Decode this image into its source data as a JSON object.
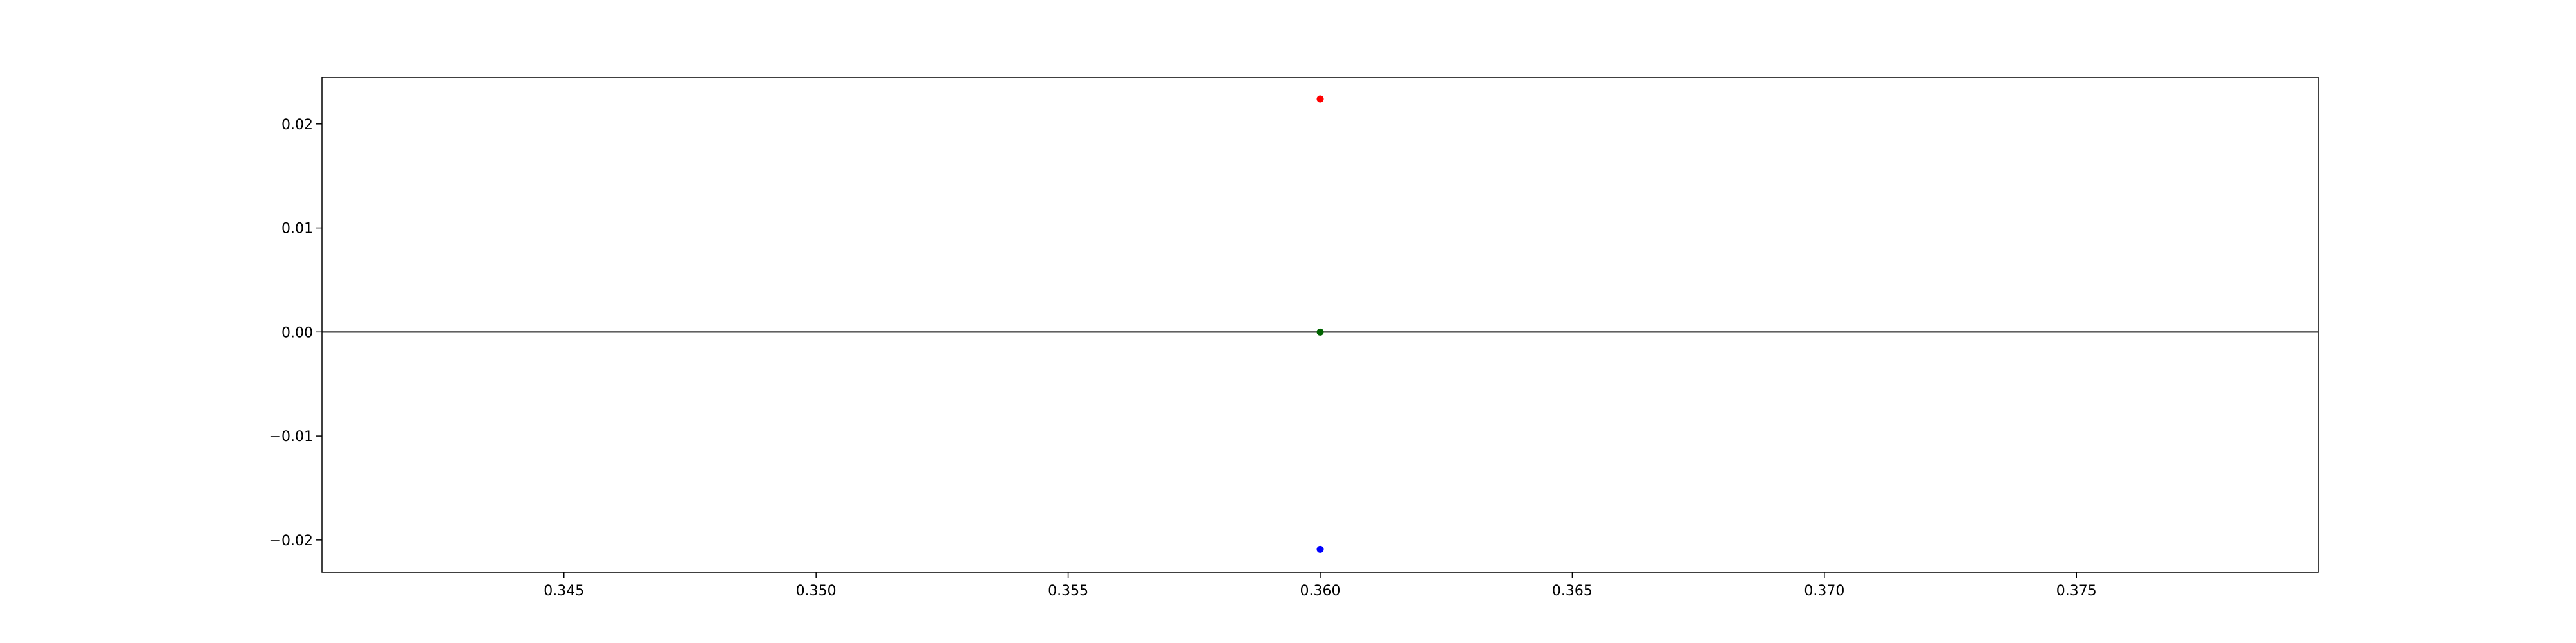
{
  "chart_data": {
    "type": "scatter",
    "title": "",
    "xlabel": "",
    "ylabel": "",
    "xlim": [
      0.3402,
      0.3798
    ],
    "ylim": [
      -0.0231,
      0.0245
    ],
    "grid": false,
    "x_ticks": [
      0.345,
      0.35,
      0.355,
      0.36,
      0.365,
      0.37,
      0.375
    ],
    "x_tick_labels": [
      "0.345",
      "0.350",
      "0.355",
      "0.360",
      "0.365",
      "0.370",
      "0.375"
    ],
    "y_ticks": [
      0.02,
      0.01,
      0.0,
      -0.01,
      -0.02
    ],
    "y_tick_labels": [
      "0.02",
      "0.01",
      "0.00",
      "−0.01",
      "−0.02"
    ],
    "reference_line": {
      "y": 0.0,
      "color": "#000000"
    },
    "points": [
      {
        "x": 0.36,
        "y": 0.0224,
        "color": "#ff0000"
      },
      {
        "x": 0.36,
        "y": 0.0,
        "color": "#006400"
      },
      {
        "x": 0.36,
        "y": -0.0209,
        "color": "#0000ff"
      }
    ]
  }
}
